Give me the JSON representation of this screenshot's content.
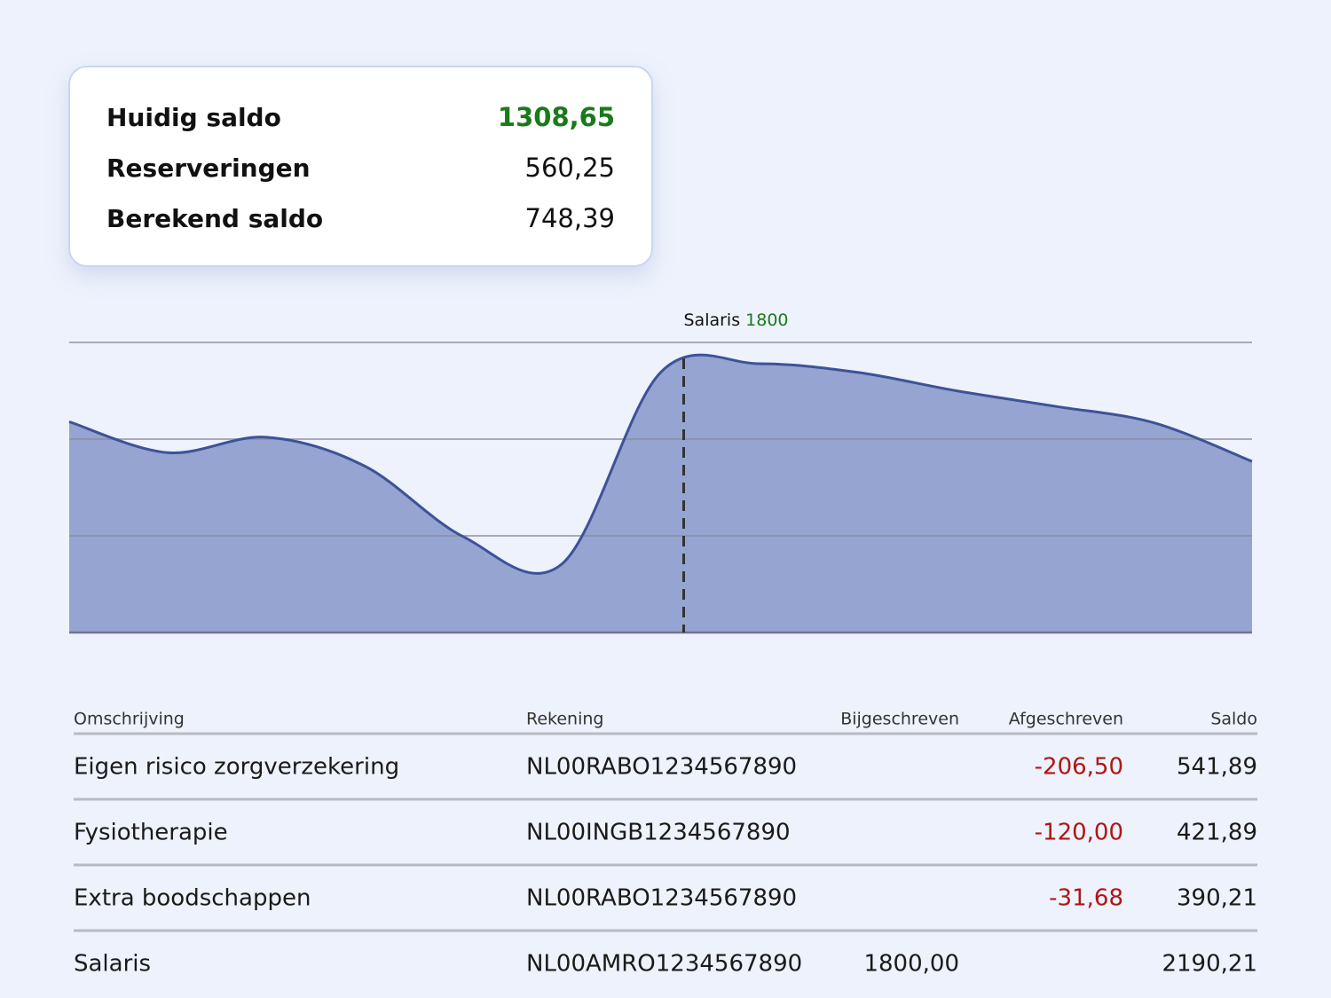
{
  "summary": {
    "rows": [
      {
        "label": "Huidig saldo",
        "value": "1308,65"
      },
      {
        "label": "Reserveringen",
        "value": "560,25"
      },
      {
        "label": "Berekend saldo",
        "value": "748,39"
      }
    ]
  },
  "chart_data": {
    "type": "area",
    "annotation": {
      "label": "Salaris",
      "value": 1800
    },
    "values": [
      2.18,
      1.86,
      2.02,
      1.72,
      0.99,
      0.71,
      2.69,
      2.78,
      2.69,
      2.5,
      2.34,
      2.17,
      1.77
    ],
    "ylim": [
      0,
      3
    ],
    "grid_lines": [
      1,
      2,
      3
    ],
    "color": "#95a4d0",
    "line_color": "#3d5299"
  },
  "table": {
    "headers": [
      "Omschrijving",
      "Rekening",
      "Bijgeschreven",
      "Afgeschreven",
      "Saldo"
    ],
    "rows": [
      [
        "Eigen risico zorgverzekering",
        "NL00RABO1234567890",
        null,
        "-206,50",
        "541,89"
      ],
      [
        "Fysiotherapie",
        "NL00INGB1234567890",
        null,
        "-120,00",
        "421,89"
      ],
      [
        "Extra boodschappen",
        "NL00RABO1234567890",
        null,
        "-31,68",
        "390,21"
      ],
      [
        "Salaris",
        "NL00AMRO1234567890",
        "1800,00",
        null,
        "2190,21"
      ]
    ]
  }
}
